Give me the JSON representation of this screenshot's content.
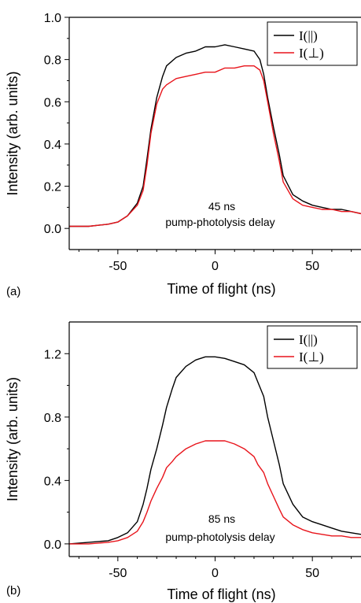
{
  "chart_data": [
    {
      "type": "line",
      "panel_label": "(a)",
      "xlabel": "Time of flight (ns)",
      "ylabel": "Intensity (arb. units)",
      "xlim": [
        -75,
        75
      ],
      "ylim": [
        -0.1,
        1.0
      ],
      "xticks": [
        -50,
        0,
        50
      ],
      "yticks": [
        0.0,
        0.2,
        0.4,
        0.6,
        0.8,
        1.0
      ],
      "ytick_labels": [
        "0.0",
        "0.2",
        "0.4",
        "0.6",
        "0.8",
        "1.0"
      ],
      "annotation": [
        "45 ns",
        "pump-photolysis delay"
      ],
      "legend_position": "top-right",
      "series": [
        {
          "name": "I(||)",
          "color": "#000000",
          "x": [
            -75,
            -65,
            -55,
            -50,
            -45,
            -40,
            -37,
            -35,
            -33,
            -30,
            -27,
            -25,
            -20,
            -15,
            -10,
            -5,
            0,
            5,
            10,
            15,
            20,
            23,
            25,
            27,
            30,
            33,
            35,
            40,
            45,
            50,
            55,
            60,
            65,
            70,
            75
          ],
          "y": [
            0.01,
            0.01,
            0.02,
            0.03,
            0.06,
            0.12,
            0.2,
            0.33,
            0.47,
            0.62,
            0.72,
            0.77,
            0.81,
            0.83,
            0.84,
            0.86,
            0.86,
            0.87,
            0.86,
            0.85,
            0.84,
            0.8,
            0.73,
            0.62,
            0.48,
            0.35,
            0.25,
            0.16,
            0.13,
            0.11,
            0.1,
            0.09,
            0.09,
            0.08,
            0.07
          ]
        },
        {
          "name": "I(⊥)",
          "color": "#e8141b",
          "x": [
            -75,
            -65,
            -55,
            -50,
            -45,
            -40,
            -37,
            -35,
            -33,
            -30,
            -27,
            -25,
            -20,
            -15,
            -10,
            -5,
            0,
            5,
            10,
            15,
            20,
            23,
            25,
            27,
            30,
            33,
            35,
            40,
            45,
            50,
            55,
            60,
            65,
            70,
            75
          ],
          "y": [
            0.01,
            0.01,
            0.02,
            0.03,
            0.06,
            0.11,
            0.18,
            0.3,
            0.45,
            0.59,
            0.66,
            0.68,
            0.71,
            0.72,
            0.73,
            0.74,
            0.74,
            0.76,
            0.76,
            0.77,
            0.77,
            0.75,
            0.7,
            0.6,
            0.45,
            0.32,
            0.22,
            0.14,
            0.11,
            0.1,
            0.09,
            0.09,
            0.08,
            0.08,
            0.07
          ]
        }
      ]
    },
    {
      "type": "line",
      "panel_label": "(b)",
      "xlabel": "Time of flight (ns)",
      "ylabel": "Intensity (arb. units)",
      "xlim": [
        -75,
        75
      ],
      "ylim": [
        -0.08,
        1.4
      ],
      "xticks": [
        -50,
        0,
        50
      ],
      "yticks": [
        0.0,
        0.4,
        0.8,
        1.2
      ],
      "ytick_labels": [
        "0.0",
        "0.4",
        "0.8",
        "1.2"
      ],
      "annotation": [
        "85 ns",
        "pump-photolysis delay"
      ],
      "legend_position": "top-right",
      "series": [
        {
          "name": "I(||)",
          "color": "#000000",
          "x": [
            -75,
            -65,
            -55,
            -50,
            -45,
            -40,
            -37,
            -35,
            -33,
            -30,
            -27,
            -25,
            -22,
            -20,
            -15,
            -10,
            -5,
            0,
            5,
            10,
            15,
            20,
            22,
            25,
            27,
            30,
            33,
            35,
            40,
            45,
            50,
            55,
            60,
            65,
            70,
            75
          ],
          "y": [
            0.0,
            0.01,
            0.02,
            0.04,
            0.07,
            0.14,
            0.25,
            0.35,
            0.47,
            0.6,
            0.75,
            0.86,
            0.98,
            1.05,
            1.12,
            1.16,
            1.18,
            1.18,
            1.17,
            1.15,
            1.13,
            1.08,
            1.02,
            0.93,
            0.8,
            0.65,
            0.5,
            0.38,
            0.25,
            0.17,
            0.14,
            0.12,
            0.1,
            0.08,
            0.07,
            0.06
          ]
        },
        {
          "name": "I(⊥)",
          "color": "#e8141b",
          "x": [
            -75,
            -65,
            -55,
            -50,
            -45,
            -40,
            -37,
            -35,
            -33,
            -30,
            -27,
            -25,
            -22,
            -20,
            -15,
            -10,
            -5,
            0,
            5,
            10,
            15,
            20,
            22,
            25,
            27,
            30,
            33,
            35,
            40,
            45,
            50,
            55,
            60,
            65,
            70,
            75
          ],
          "y": [
            0.0,
            0.0,
            0.01,
            0.02,
            0.04,
            0.08,
            0.14,
            0.2,
            0.27,
            0.35,
            0.42,
            0.48,
            0.52,
            0.55,
            0.6,
            0.63,
            0.65,
            0.65,
            0.65,
            0.63,
            0.6,
            0.55,
            0.5,
            0.45,
            0.38,
            0.3,
            0.22,
            0.17,
            0.12,
            0.09,
            0.07,
            0.06,
            0.05,
            0.05,
            0.04,
            0.04
          ]
        }
      ]
    }
  ]
}
